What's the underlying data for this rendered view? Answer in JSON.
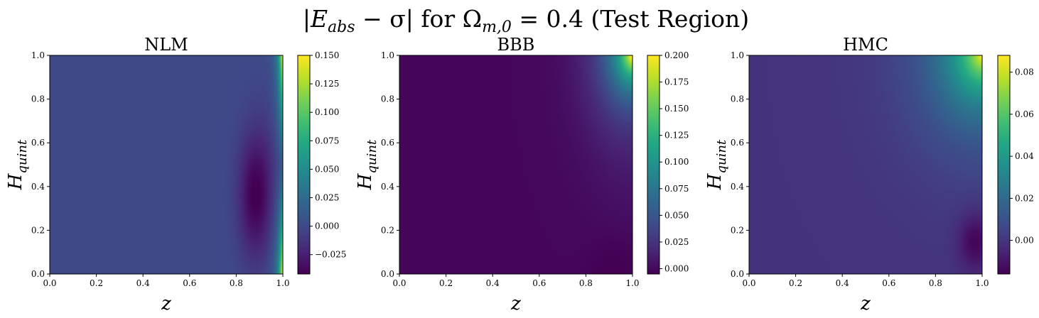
{
  "figure": {
    "title_parts": {
      "abs_open": "|",
      "E": "E",
      "E_sub": "abs",
      "minus_sigma": " − σ",
      "abs_close": "|",
      "for_text": " for ",
      "Omega": "Ω",
      "Omega_sub": "m,0",
      "eq_value": " = 0.4",
      "region": " (Test Region)"
    }
  },
  "chart_data": [
    {
      "type": "heatmap",
      "title": "NLM",
      "xlabel": "z",
      "ylabel_main": "H",
      "ylabel_sub": "quint",
      "xlim": [
        0.0,
        1.0
      ],
      "ylim": [
        0.0,
        1.0
      ],
      "xticks": [
        "0.0",
        "0.2",
        "0.4",
        "0.6",
        "0.8",
        "1.0"
      ],
      "yticks": [
        "0.0",
        "0.2",
        "0.4",
        "0.6",
        "0.8",
        "1.0"
      ],
      "colorbar": {
        "min": -0.042,
        "max": 0.15,
        "ticks": [
          -0.025,
          0.0,
          0.025,
          0.05,
          0.075,
          0.1,
          0.125,
          0.15
        ],
        "tick_labels": [
          "−0.025",
          "0.000",
          "0.025",
          "0.050",
          "0.075",
          "0.100",
          "0.125",
          "0.150"
        ],
        "colormap": "viridis"
      },
      "pattern": "Near-uniform ≈0.0 across most of the field; a dark minimum ≈−0.04 near z≈0.88, H≈0.35; sharp rise to ≈0.15 at z≈1.0 near the top and bottom edges."
    },
    {
      "type": "heatmap",
      "title": "BBB",
      "xlabel": "z",
      "ylabel_main": "H",
      "ylabel_sub": "quint",
      "xlim": [
        0.0,
        1.0
      ],
      "ylim": [
        0.0,
        1.0
      ],
      "xticks": [
        "0.0",
        "0.2",
        "0.4",
        "0.6",
        "0.8",
        "1.0"
      ],
      "yticks": [
        "0.0",
        "0.2",
        "0.4",
        "0.6",
        "0.8",
        "1.0"
      ],
      "colorbar": {
        "min": -0.005,
        "max": 0.2,
        "ticks": [
          0.0,
          0.025,
          0.05,
          0.075,
          0.1,
          0.125,
          0.15,
          0.175,
          0.2
        ],
        "tick_labels": [
          "0.000",
          "0.025",
          "0.050",
          "0.075",
          "0.100",
          "0.125",
          "0.150",
          "0.175",
          "0.200"
        ],
        "colormap": "viridis"
      },
      "pattern": "Minimum ≈0.0 over most of the field; increases toward the upper-right corner, reaching ≈0.2 at z=1.0, H=1.0."
    },
    {
      "type": "heatmap",
      "title": "HMC",
      "xlabel": "z",
      "ylabel_main": "H",
      "ylabel_sub": "quint",
      "xlim": [
        0.0,
        1.0
      ],
      "ylim": [
        0.0,
        1.0
      ],
      "xticks": [
        "0.0",
        "0.2",
        "0.4",
        "0.6",
        "0.8",
        "1.0"
      ],
      "yticks": [
        "0.0",
        "0.2",
        "0.4",
        "0.6",
        "0.8",
        "1.0"
      ],
      "colorbar": {
        "min": -0.016,
        "max": 0.088,
        "ticks": [
          0.0,
          0.02,
          0.04,
          0.06,
          0.08
        ],
        "tick_labels": [
          "0.00",
          "0.02",
          "0.04",
          "0.06",
          "0.08"
        ],
        "colormap": "viridis"
      },
      "pattern": "Roughly uniform ≈0.0 across most of the field; a minimum ≈−0.015 near z≈0.97, H≈0.15; rises to ≈0.088 at the upper-right corner."
    }
  ]
}
